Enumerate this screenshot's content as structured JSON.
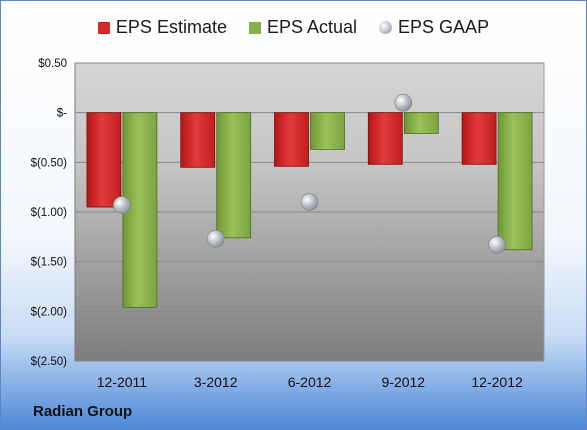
{
  "chart_data": {
    "type": "bar",
    "categories": [
      "12-2011",
      "3-2012",
      "6-2012",
      "9-2012",
      "12-2012"
    ],
    "series": [
      {
        "name": "EPS Estimate",
        "kind": "bar",
        "color": "#d42a2a",
        "values": [
          -0.95,
          -0.55,
          -0.54,
          -0.52,
          -0.52
        ]
      },
      {
        "name": "EPS Actual",
        "kind": "bar",
        "color": "#86b04a",
        "values": [
          -1.96,
          -1.26,
          -0.37,
          -0.21,
          -1.38
        ]
      },
      {
        "name": "EPS GAAP",
        "kind": "marker",
        "color": "#b6bcc4",
        "values": [
          -0.93,
          -1.27,
          -0.9,
          0.1,
          -1.33
        ]
      }
    ],
    "yticks": [
      {
        "value": 0.5,
        "label": "$0.50"
      },
      {
        "value": 0,
        "label": "$-"
      },
      {
        "value": -0.5,
        "label": "$(0.50)"
      },
      {
        "value": -1.0,
        "label": "$(1.00)"
      },
      {
        "value": -1.5,
        "label": "$(1.50)"
      },
      {
        "value": -2.0,
        "label": "$(2.00)"
      },
      {
        "value": -2.5,
        "label": "$(2.50)"
      }
    ],
    "ylim": [
      -2.5,
      0.5
    ],
    "grid": true,
    "legend": "top-center"
  },
  "brand": "Radian Group"
}
